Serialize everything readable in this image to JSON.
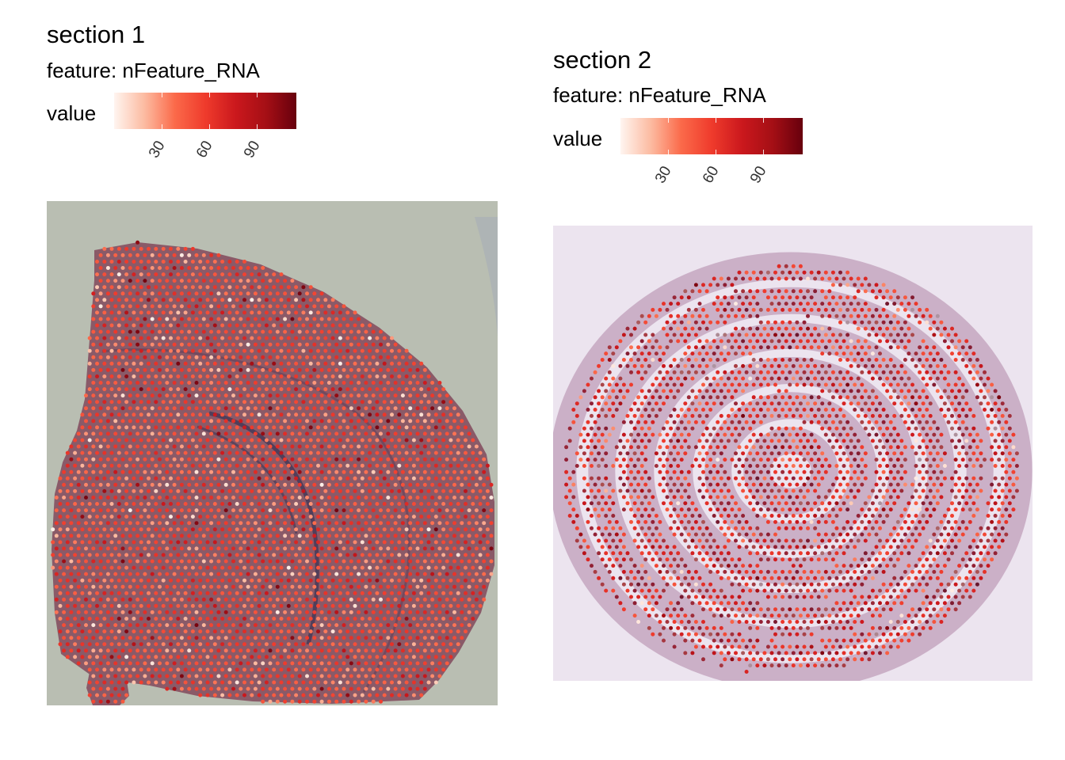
{
  "chart_data": [
    {
      "type": "scatter",
      "title": "section 1",
      "subtitle": "feature:  nFeature_RNA",
      "legend": {
        "title": "value",
        "placement": "top",
        "color_scale": [
          "#fff5f0",
          "#fcbba1",
          "#fb6a4a",
          "#ef3b2c",
          "#cb181d",
          "#a50f15",
          "#67000d"
        ],
        "range": [
          0,
          115
        ],
        "ticks": [
          30,
          60,
          90
        ]
      },
      "tissue_background": "#b9beb2",
      "tissue_stain": "#8a5a68",
      "spot_summary": {
        "typical_value": 48,
        "min": 2,
        "max": 110
      }
    },
    {
      "type": "scatter",
      "title": "section 2",
      "subtitle": "feature:  nFeature_RNA",
      "legend": {
        "title": "value",
        "placement": "top",
        "color_scale": [
          "#fff5f0",
          "#fcbba1",
          "#fb6a4a",
          "#ef3b2c",
          "#cb181d",
          "#a50f15",
          "#67000d"
        ],
        "range": [
          0,
          115
        ],
        "ticks": [
          30,
          60,
          90
        ]
      },
      "tissue_background": "#ece4ef",
      "tissue_stain": "#8f4f7f",
      "spot_summary": {
        "typical_value": 62,
        "min": 3,
        "max": 112
      }
    }
  ]
}
